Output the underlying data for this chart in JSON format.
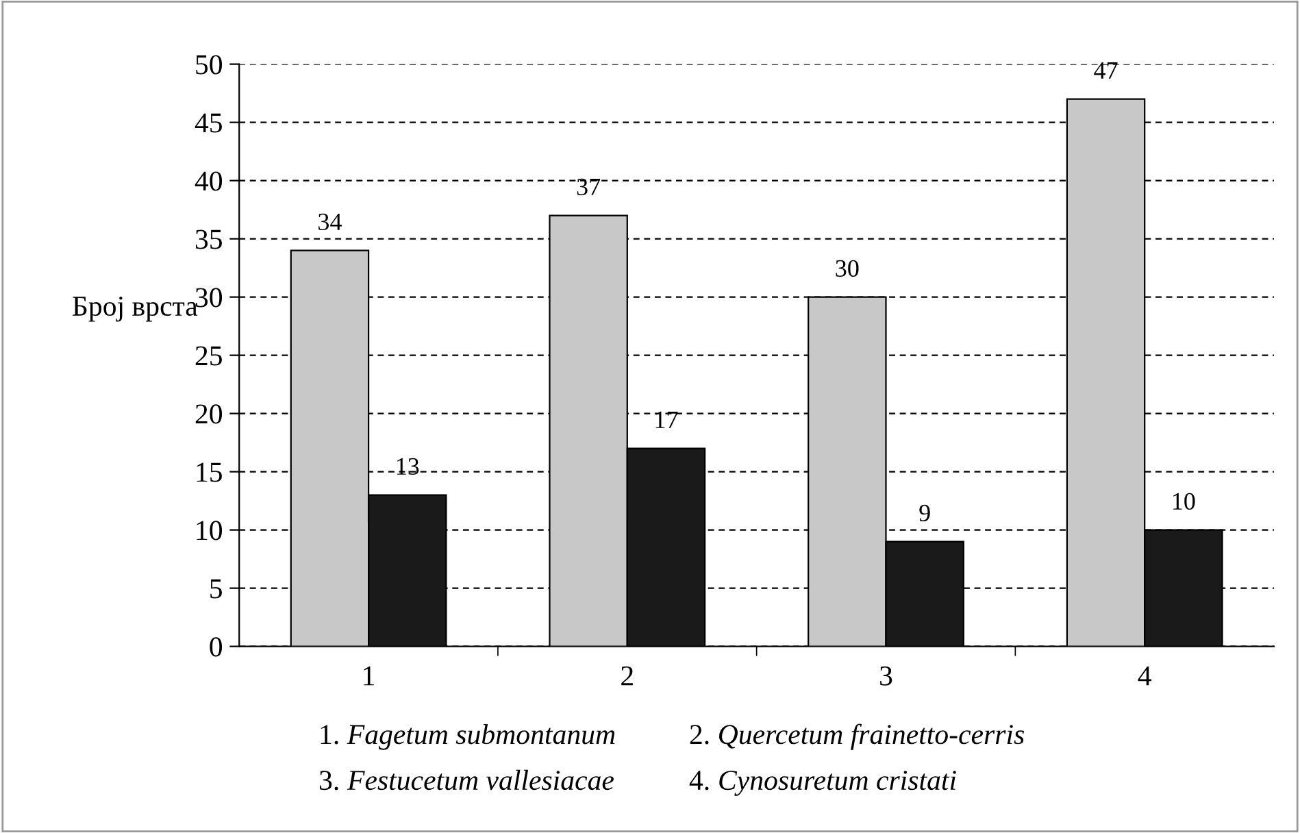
{
  "chart_data": {
    "type": "bar",
    "ylabel": "Број врста",
    "categories": [
      "1",
      "2",
      "3",
      "4"
    ],
    "series": [
      {
        "color": "#c8c8c8",
        "values": [
          34,
          37,
          30,
          47
        ]
      },
      {
        "color": "#1a1a1a",
        "values": [
          13,
          17,
          9,
          10
        ]
      }
    ],
    "ylim": [
      0,
      50
    ],
    "yticks": [
      0,
      5,
      10,
      15,
      20,
      25,
      30,
      35,
      40,
      45,
      50
    ],
    "grid": "y",
    "data_labels": true,
    "legend": false,
    "annotations": [
      "1. Fagetum submontanum",
      "2. Quercetum frainetto-cerris",
      "3. Festucetum vallesiacae",
      "4. Cynosuretum cristati"
    ]
  }
}
